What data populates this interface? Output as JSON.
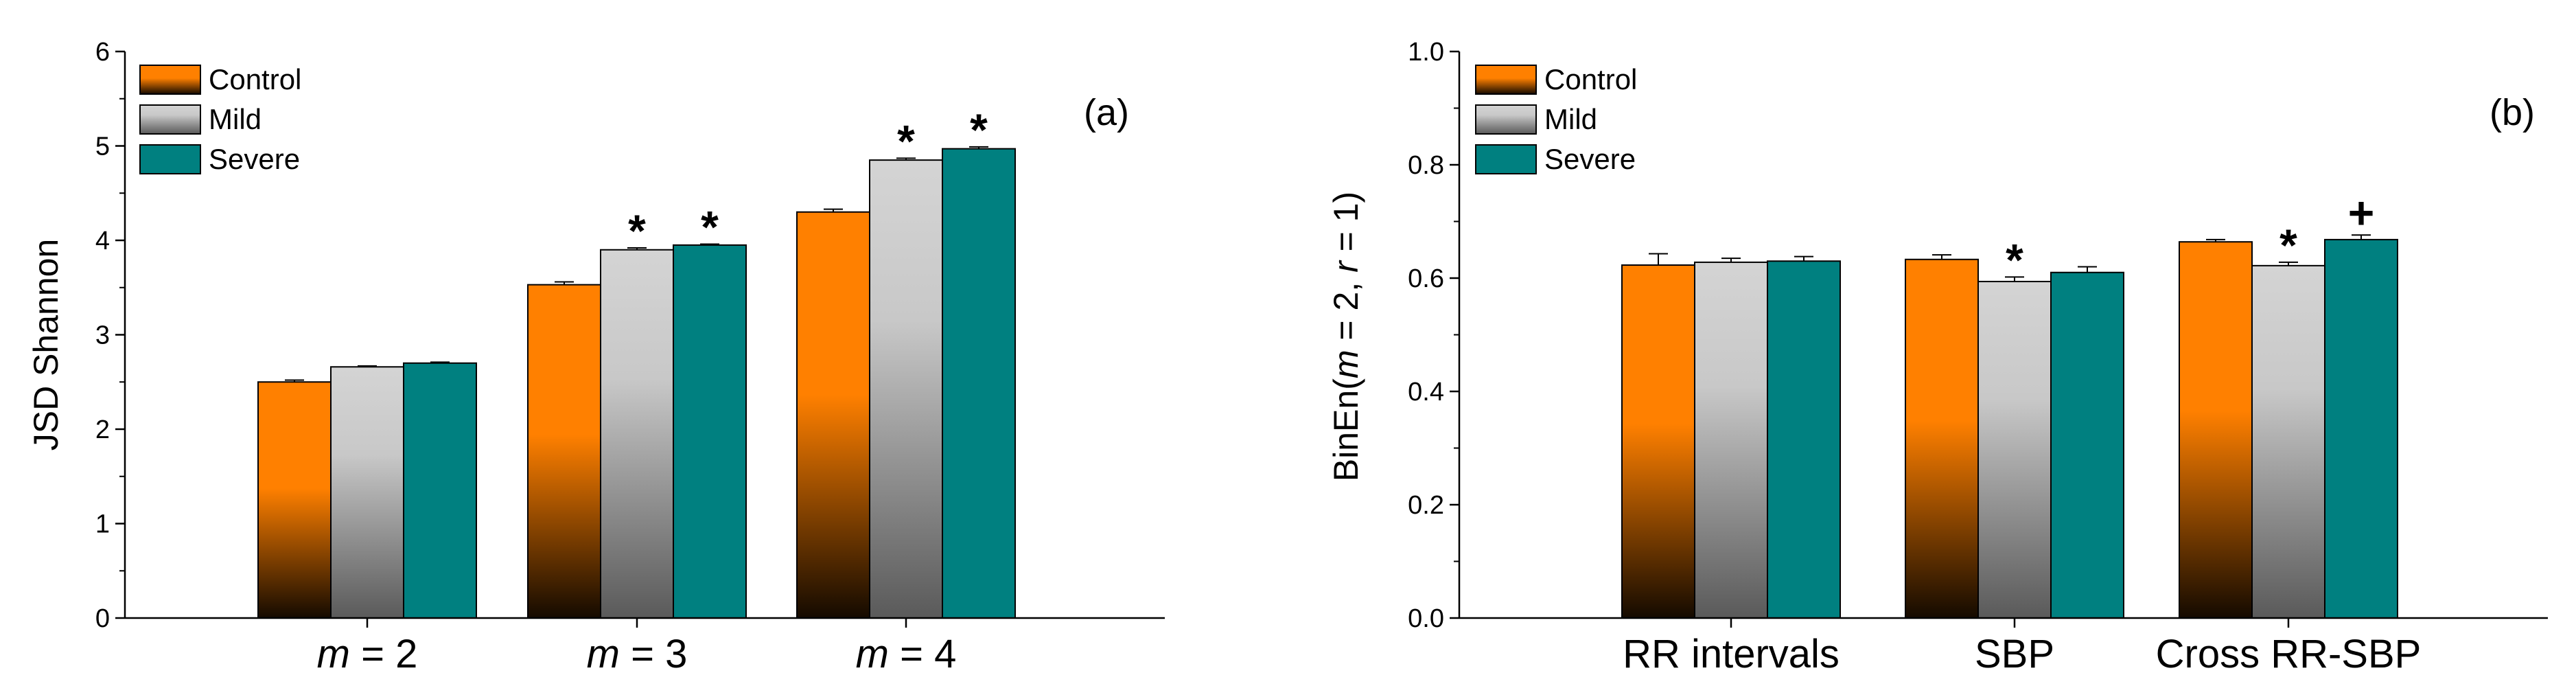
{
  "colors": {
    "control_top": "#ff8000",
    "control_bottom": "#140a00",
    "mild_top": "#d4d4d4",
    "mild_bottom": "#5a5a5a",
    "severe": "#008080",
    "bar_stroke": "#000000",
    "axis": "#000000"
  },
  "legend_items": [
    {
      "name": "Control",
      "style": "control"
    },
    {
      "name": "Mild",
      "style": "mild"
    },
    {
      "name": "Severe",
      "style": "severe"
    }
  ],
  "chart_data": [
    {
      "type": "bar",
      "panel": "(a)",
      "ylabel": "JSD Shannon",
      "ylim": [
        0,
        6
      ],
      "yticks": [
        "0",
        "1",
        "2",
        "3",
        "4",
        "5",
        "6"
      ],
      "categories": [
        {
          "italic": "m",
          "rest": " = 2"
        },
        {
          "italic": "m",
          "rest": " = 3"
        },
        {
          "italic": "m",
          "rest": " = 4"
        }
      ],
      "series": [
        {
          "name": "Control",
          "values": [
            2.5,
            3.53,
            4.3
          ],
          "errors": [
            0.02,
            0.03,
            0.03
          ],
          "markers": [
            "",
            "",
            ""
          ]
        },
        {
          "name": "Mild",
          "values": [
            2.66,
            3.9,
            4.85
          ],
          "errors": [
            0.01,
            0.02,
            0.02
          ],
          "markers": [
            "",
            "*",
            "*"
          ]
        },
        {
          "name": "Severe",
          "values": [
            2.7,
            3.95,
            4.97
          ],
          "errors": [
            0.01,
            0.01,
            0.02
          ],
          "markers": [
            "",
            "*",
            "*"
          ]
        }
      ]
    },
    {
      "type": "bar",
      "panel": "(b)",
      "ylabel_parts": [
        "BinEn(",
        "m",
        " = 2, ",
        "r",
        " = 1)"
      ],
      "ylim": [
        0,
        1.0
      ],
      "yticks": [
        "0.0",
        "0.2",
        "0.4",
        "0.6",
        "0.8",
        "1.0"
      ],
      "categories": [
        "RR intervals",
        "SBP",
        "Cross RR-SBP"
      ],
      "series": [
        {
          "name": "Control",
          "values": [
            0.623,
            0.633,
            0.664
          ],
          "errors": [
            0.02,
            0.008,
            0.004
          ],
          "markers": [
            "",
            "",
            ""
          ]
        },
        {
          "name": "Mild",
          "values": [
            0.628,
            0.594,
            0.622
          ],
          "errors": [
            0.007,
            0.008,
            0.006
          ],
          "markers": [
            "",
            "*",
            "*"
          ]
        },
        {
          "name": "Severe",
          "values": [
            0.63,
            0.61,
            0.668
          ],
          "errors": [
            0.008,
            0.01,
            0.008
          ],
          "markers": [
            "",
            "",
            "+"
          ]
        }
      ]
    }
  ]
}
